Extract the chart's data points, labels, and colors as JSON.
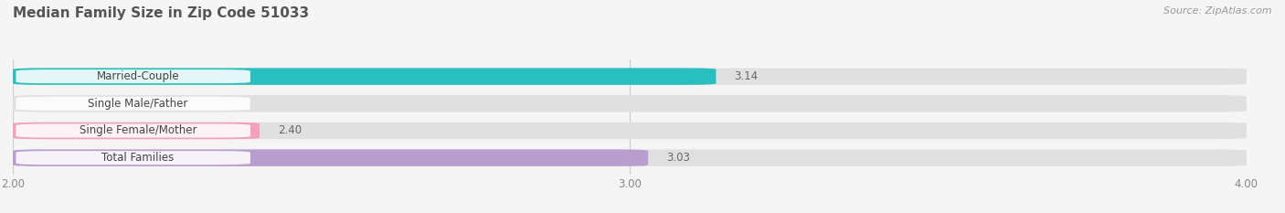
{
  "title": "Median Family Size in Zip Code 51033",
  "source": "Source: ZipAtlas.com",
  "categories": [
    "Married-Couple",
    "Single Male/Father",
    "Single Female/Mother",
    "Total Families"
  ],
  "values": [
    3.14,
    2.0,
    2.4,
    3.03
  ],
  "bar_colors": [
    "#2abfbf",
    "#aabde8",
    "#f4a0bc",
    "#b89ece"
  ],
  "bar_bg_color": "#e8e8e8",
  "xlim": [
    2.0,
    4.0
  ],
  "xticks": [
    2.0,
    3.0,
    4.0
  ],
  "xtick_labels": [
    "2.00",
    "3.00",
    "4.00"
  ],
  "title_fontsize": 11,
  "label_fontsize": 8.5,
  "value_fontsize": 8.5,
  "source_fontsize": 8,
  "background_color": "#f5f5f5",
  "bar_height": 0.62,
  "bar_gap": 0.18
}
